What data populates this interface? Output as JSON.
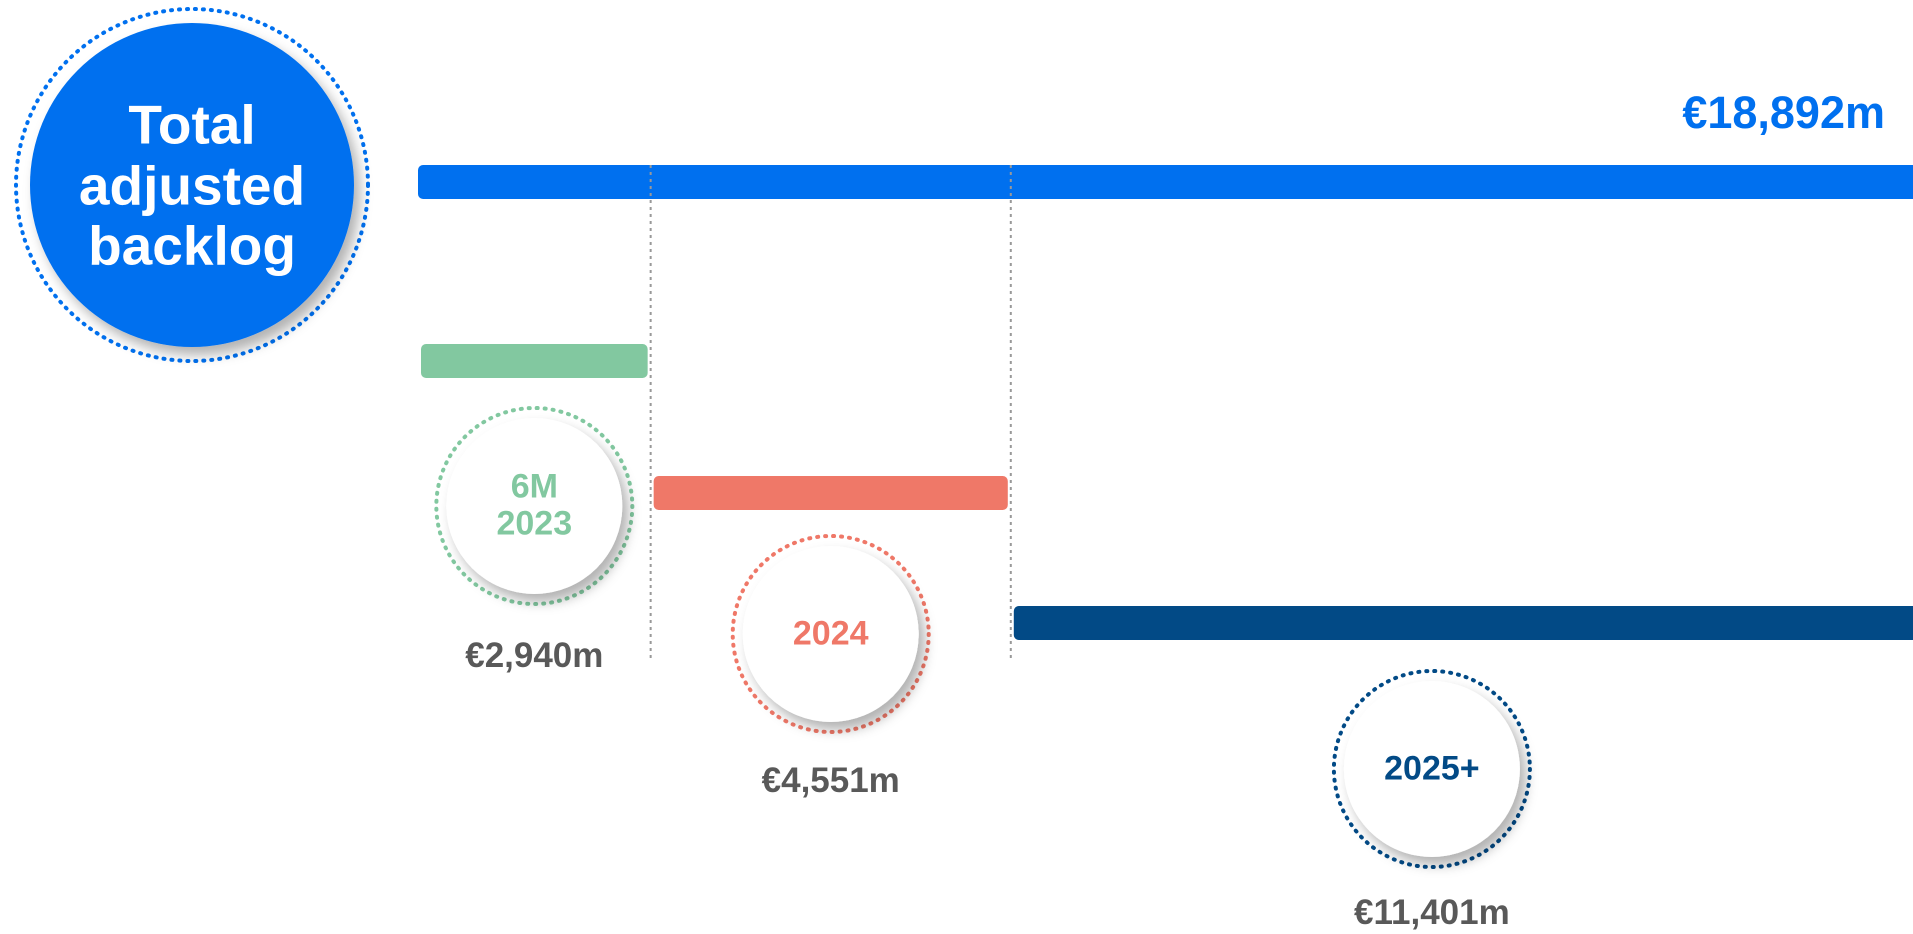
{
  "chart_data": {
    "type": "waterfall",
    "title": "Total adjusted backlog",
    "total": {
      "value": 18892,
      "value_label": "€18,892m",
      "color": "#0070ef"
    },
    "categories": [
      "6M 2023",
      "2024",
      "2025+"
    ],
    "values": [
      2940,
      4551,
      11401
    ],
    "value_labels": [
      "€2,940m",
      "€4,551m",
      "€11,401m"
    ],
    "colors": [
      "#82c8a0",
      "#ef7868",
      "#024a86"
    ]
  }
}
